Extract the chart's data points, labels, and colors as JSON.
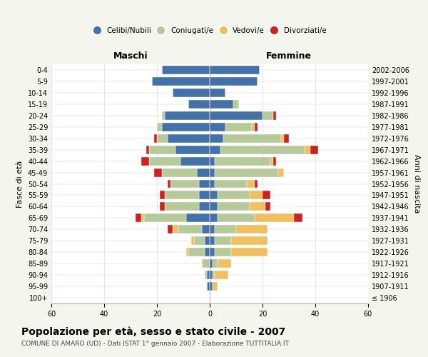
{
  "age_groups": [
    "100+",
    "95-99",
    "90-94",
    "85-89",
    "80-84",
    "75-79",
    "70-74",
    "65-69",
    "60-64",
    "55-59",
    "50-54",
    "45-49",
    "40-44",
    "35-39",
    "30-34",
    "25-29",
    "20-24",
    "15-19",
    "10-14",
    "5-9",
    "0-4"
  ],
  "birth_years": [
    "≤ 1906",
    "1907-1911",
    "1912-1916",
    "1917-1921",
    "1922-1926",
    "1927-1931",
    "1932-1936",
    "1937-1941",
    "1942-1946",
    "1947-1951",
    "1952-1956",
    "1957-1961",
    "1962-1966",
    "1967-1971",
    "1972-1976",
    "1977-1981",
    "1982-1986",
    "1987-1991",
    "1992-1996",
    "1997-2001",
    "2002-2006"
  ],
  "colors": {
    "celibi": "#4472a8",
    "coniugati": "#b5c99a",
    "vedovi": "#f0c060",
    "divorziati": "#cc2222"
  },
  "males": {
    "celibi": [
      0,
      1,
      1,
      0,
      2,
      2,
      3,
      9,
      4,
      4,
      4,
      5,
      11,
      13,
      16,
      18,
      17,
      8,
      14,
      22,
      18
    ],
    "coniugati": [
      0,
      0,
      1,
      3,
      6,
      4,
      9,
      16,
      13,
      13,
      11,
      13,
      12,
      10,
      4,
      2,
      1,
      0,
      0,
      0,
      0
    ],
    "vedovi": [
      0,
      0,
      0,
      0,
      1,
      1,
      2,
      1,
      0,
      0,
      0,
      0,
      0,
      0,
      0,
      0,
      0,
      0,
      0,
      0,
      0
    ],
    "divorziati": [
      0,
      0,
      0,
      0,
      0,
      0,
      2,
      2,
      2,
      2,
      1,
      3,
      3,
      1,
      1,
      0,
      0,
      0,
      0,
      0,
      0
    ]
  },
  "females": {
    "celibi": [
      0,
      1,
      1,
      1,
      2,
      2,
      2,
      3,
      3,
      3,
      2,
      2,
      2,
      4,
      5,
      6,
      20,
      9,
      6,
      18,
      19
    ],
    "coniugati": [
      0,
      0,
      1,
      2,
      6,
      6,
      8,
      14,
      12,
      12,
      12,
      24,
      21,
      32,
      22,
      10,
      4,
      2,
      0,
      0,
      0
    ],
    "vedovi": [
      0,
      2,
      5,
      5,
      14,
      14,
      12,
      15,
      6,
      5,
      3,
      2,
      1,
      2,
      1,
      1,
      0,
      0,
      0,
      0,
      0
    ],
    "divorziati": [
      0,
      0,
      0,
      0,
      0,
      0,
      0,
      3,
      2,
      3,
      1,
      0,
      1,
      3,
      2,
      1,
      1,
      0,
      0,
      0,
      0
    ]
  },
  "xlim": 60,
  "title": "Popolazione per età, sesso e stato civile - 2007",
  "subtitle": "COMUNE DI AMARO (UD) - Dati ISTAT 1° gennaio 2007 - Elaborazione TUTTITALIA.IT",
  "ylabel_left": "Fasce di età",
  "ylabel_right": "Anni di nascita",
  "legend_labels": [
    "Celibi/Nubili",
    "Coniugati/e",
    "Vedovi/e",
    "Divorziati/e"
  ],
  "background_color": "#f5f5f0",
  "plot_bg_color": "#ffffff"
}
